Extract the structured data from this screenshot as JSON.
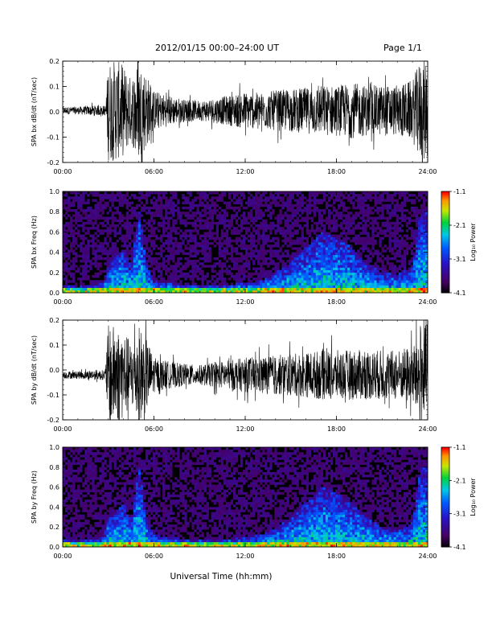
{
  "header": {
    "title": "2012/01/15  00:00–24:00 UT",
    "page": "Page 1/1"
  },
  "chart_data": [
    {
      "type": "line",
      "id": "bx-dbdt",
      "ylabel": "SPA bx dB/dt (nT/sec)",
      "xlim": [
        0,
        24
      ],
      "ylim": [
        -0.2,
        0.2
      ],
      "x_ticks": [
        "00:00",
        "06:00",
        "12:00",
        "18:00",
        "24:00"
      ],
      "y_ticks": [
        "-0.2",
        "-0.1",
        "0.0",
        "0.1",
        "0.2"
      ],
      "series": [
        {
          "x": [
            0,
            1,
            2,
            2.8,
            3,
            3.5,
            4,
            4.5,
            5,
            5.5,
            6,
            7,
            8,
            9,
            10,
            11,
            12,
            13,
            14,
            15,
            16,
            17,
            18,
            19,
            20,
            21,
            22,
            23,
            23.5,
            24
          ],
          "envelope": [
            0.015,
            0.015,
            0.02,
            0.02,
            0.2,
            0.2,
            0.18,
            0.13,
            0.2,
            0.15,
            0.08,
            0.06,
            0.045,
            0.04,
            0.05,
            0.06,
            0.075,
            0.07,
            0.08,
            0.085,
            0.09,
            0.1,
            0.1,
            0.11,
            0.1,
            0.1,
            0.1,
            0.12,
            0.2,
            0.2
          ]
        }
      ]
    },
    {
      "type": "heatmap",
      "id": "bx-freq",
      "ylabel": "SPA bx Freq (Hz)",
      "xlim": [
        0,
        24
      ],
      "ylim": [
        0.0,
        1.0
      ],
      "x_ticks": [
        "00:00",
        "06:00",
        "12:00",
        "18:00",
        "24:00"
      ],
      "y_ticks": [
        "0.0",
        "0.2",
        "0.4",
        "0.6",
        "0.8",
        "1.0"
      ],
      "colorbar": {
        "label": "Log₁₀ Power",
        "range": [
          -4.1,
          -1.1
        ],
        "ticks": [
          "-1.1",
          "-2.1",
          "-3.1",
          "-4.1"
        ]
      },
      "activity_profile": {
        "x": [
          0,
          1,
          2,
          2.7,
          3,
          3.5,
          4,
          4.5,
          5,
          5.5,
          6,
          7,
          8,
          9,
          10,
          11,
          12,
          13,
          14,
          15,
          16,
          17,
          18,
          19,
          20,
          21,
          22,
          23,
          23.5,
          24
        ],
        "peak_freq": [
          0.08,
          0.06,
          0.08,
          0.1,
          0.3,
          0.35,
          0.45,
          0.25,
          0.85,
          0.3,
          0.12,
          0.1,
          0.08,
          0.07,
          0.07,
          0.08,
          0.1,
          0.12,
          0.2,
          0.3,
          0.45,
          0.6,
          0.55,
          0.45,
          0.3,
          0.2,
          0.18,
          0.25,
          0.8,
          0.8
        ]
      }
    },
    {
      "type": "line",
      "id": "by-dbdt",
      "ylabel": "SPA by dB/dt (nT/sec)",
      "xlim": [
        0,
        24
      ],
      "ylim": [
        -0.2,
        0.2
      ],
      "x_ticks": [
        "00:00",
        "06:00",
        "12:00",
        "18:00",
        "24:00"
      ],
      "y_ticks": [
        "-0.2",
        "-0.1",
        "0.0",
        "0.1",
        "0.2"
      ],
      "series": [
        {
          "x": [
            0,
            1,
            2,
            2.8,
            3,
            3.5,
            4,
            4.5,
            5,
            5.5,
            6,
            7,
            8,
            9,
            10,
            11,
            12,
            13,
            14,
            15,
            16,
            17,
            18,
            19,
            20,
            21,
            22,
            23,
            23.5,
            24
          ],
          "envelope": [
            0.015,
            0.015,
            0.02,
            0.02,
            0.2,
            0.2,
            0.18,
            0.13,
            0.2,
            0.15,
            0.07,
            0.055,
            0.045,
            0.04,
            0.05,
            0.06,
            0.07,
            0.075,
            0.08,
            0.085,
            0.09,
            0.1,
            0.1,
            0.1,
            0.1,
            0.1,
            0.1,
            0.12,
            0.2,
            0.2
          ]
        }
      ]
    },
    {
      "type": "heatmap",
      "id": "by-freq",
      "ylabel": "SPA by Freq (Hz)",
      "xlim": [
        0,
        24
      ],
      "ylim": [
        0.0,
        1.0
      ],
      "x_ticks": [
        "00:00",
        "06:00",
        "12:00",
        "18:00",
        "24:00"
      ],
      "y_ticks": [
        "0.0",
        "0.2",
        "0.4",
        "0.6",
        "0.8",
        "1.0"
      ],
      "colorbar": {
        "label": "Log₁₀ Power",
        "range": [
          -4.1,
          -1.1
        ],
        "ticks": [
          "-1.1",
          "-2.1",
          "-3.1",
          "-4.1"
        ]
      },
      "activity_profile": {
        "x": [
          0,
          1,
          2,
          2.7,
          3,
          3.5,
          4,
          4.5,
          5,
          5.5,
          6,
          7,
          8,
          9,
          10,
          11,
          12,
          13,
          14,
          15,
          16,
          17,
          18,
          19,
          20,
          21,
          22,
          23,
          23.5,
          24
        ],
        "peak_freq": [
          0.08,
          0.06,
          0.08,
          0.1,
          0.3,
          0.35,
          0.45,
          0.25,
          0.85,
          0.3,
          0.12,
          0.1,
          0.08,
          0.07,
          0.07,
          0.08,
          0.1,
          0.12,
          0.2,
          0.3,
          0.45,
          0.6,
          0.55,
          0.45,
          0.3,
          0.2,
          0.18,
          0.25,
          0.8,
          0.8
        ]
      }
    }
  ],
  "xlabel": "Universal Time (hh:mm)",
  "colors": {
    "trace": "#000000",
    "axis": "#000000",
    "background": "#ffffff"
  }
}
